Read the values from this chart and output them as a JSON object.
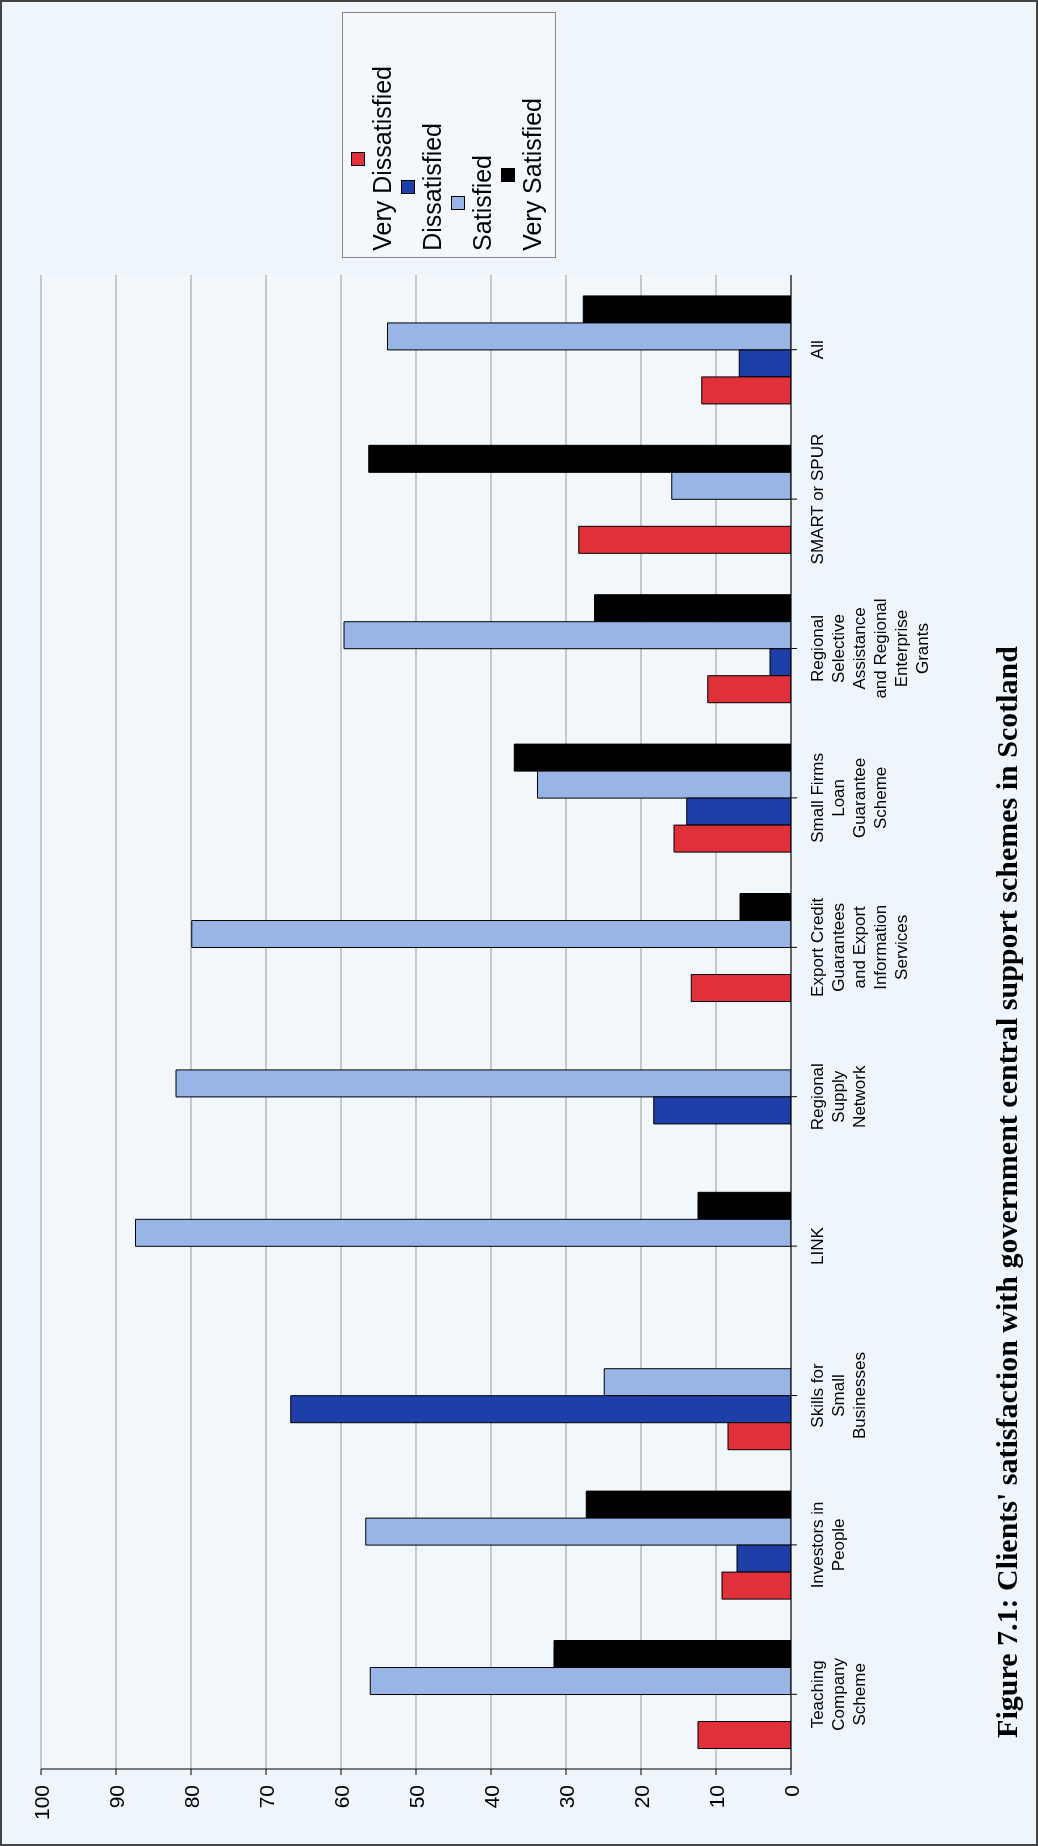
{
  "chart_data": {
    "type": "bar",
    "orientation": "horizontal",
    "title": "Figure 7.1: Clients' satisfaction with government central support schemes in Scotland",
    "categories": [
      "All",
      "SMART or SPUR",
      "Regional Selective Assistance and Regional Enterprise Grants",
      "Small Firms Loan Guarantee Scheme",
      "Export Credit Guarantees and Export Information Services",
      "Regional Supply Network",
      "LINK",
      "Skills for Small Businesses",
      "Investors in People",
      "Teaching Company Scheme"
    ],
    "series": [
      {
        "name": "Very Dissatisfied",
        "color": "#e0303a",
        "values": [
          11.9,
          28.3,
          11.1,
          15.6,
          13.3,
          null,
          null,
          8.4,
          9.2,
          12.4
        ]
      },
      {
        "name": "Dissatisfied",
        "color": "#1f3fa8",
        "values": [
          6.9,
          null,
          2.8,
          13.9,
          null,
          18.3,
          null,
          66.7,
          7.2,
          null
        ]
      },
      {
        "name": "Satisfied",
        "color": "#99b5e6",
        "values": [
          53.8,
          15.9,
          59.6,
          33.8,
          79.9,
          82.0,
          87.4,
          24.9,
          56.7,
          56.1
        ]
      },
      {
        "name": "Very Satisfied",
        "color": "#000000",
        "values": [
          27.7,
          56.3,
          26.2,
          36.9,
          6.8,
          null,
          12.4,
          null,
          27.3,
          31.6
        ]
      }
    ],
    "xlim": [
      100,
      0
    ],
    "xticks": [
      100,
      90,
      80,
      70,
      60,
      50,
      40,
      30,
      20,
      10,
      0
    ],
    "grid": "x",
    "legend": "top"
  }
}
